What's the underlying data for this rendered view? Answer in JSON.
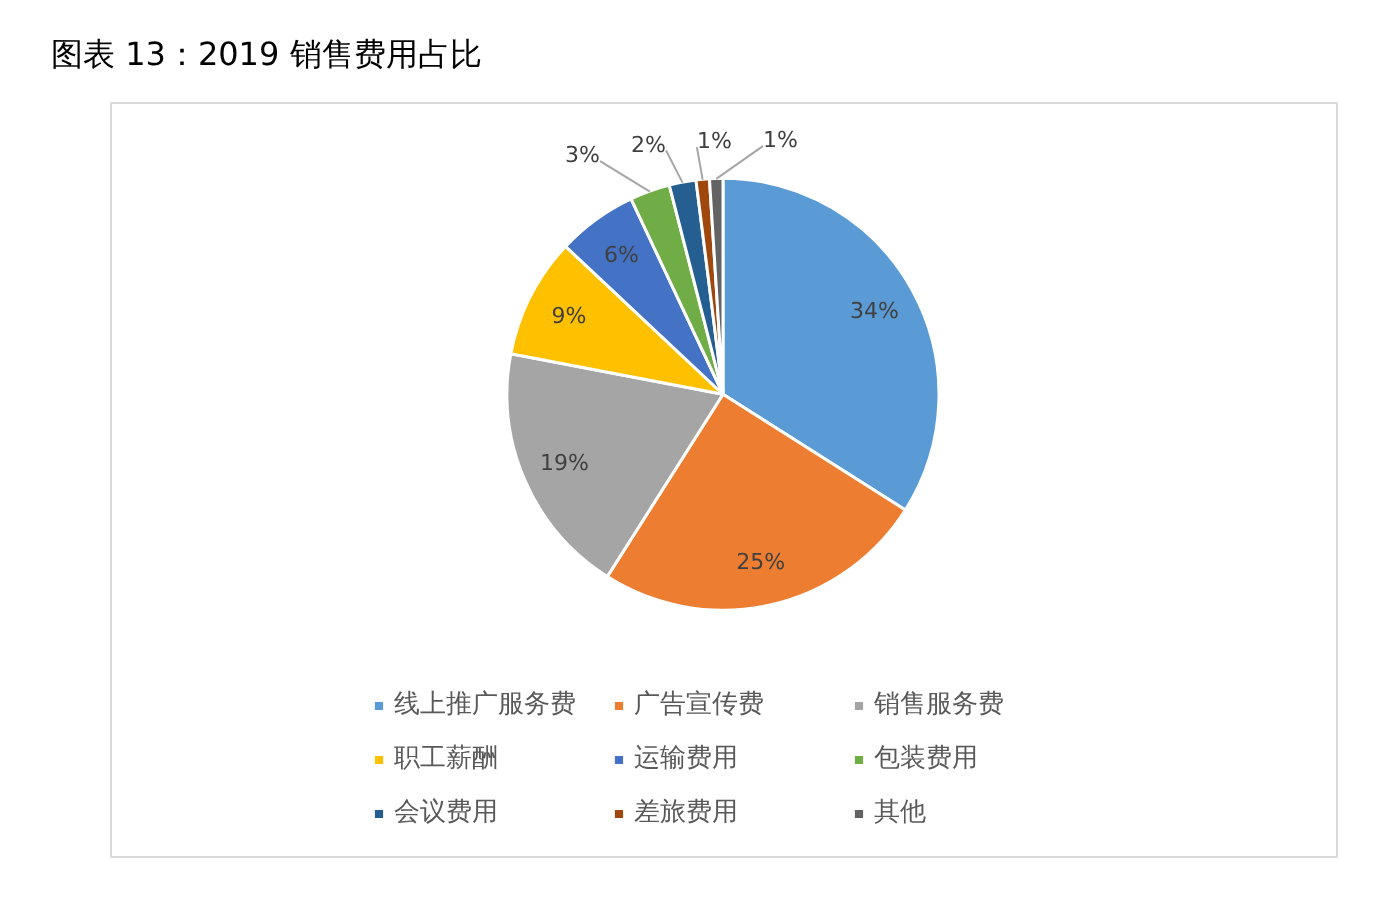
{
  "chart_data": {
    "type": "pie",
    "title": "图表 13：2019 销售费用占比",
    "categories": [
      "线上推广服务费",
      "广告宣传费",
      "销售服务费",
      "职工薪酬",
      "运输费用",
      "包装费用",
      "会议费用",
      "差旅费用",
      "其他"
    ],
    "values": [
      34,
      25,
      19,
      9,
      6,
      3,
      2,
      1,
      1
    ],
    "colors": [
      "#5b9bd5",
      "#ed7d31",
      "#a5a5a5",
      "#ffc000",
      "#4472c4",
      "#70ad47",
      "#255e91",
      "#9e480e",
      "#636363"
    ],
    "value_labels": [
      "34%",
      "25%",
      "19%",
      "9%",
      "6%",
      "3%",
      "2%",
      "1%",
      "1%"
    ],
    "legend": "bottom"
  }
}
